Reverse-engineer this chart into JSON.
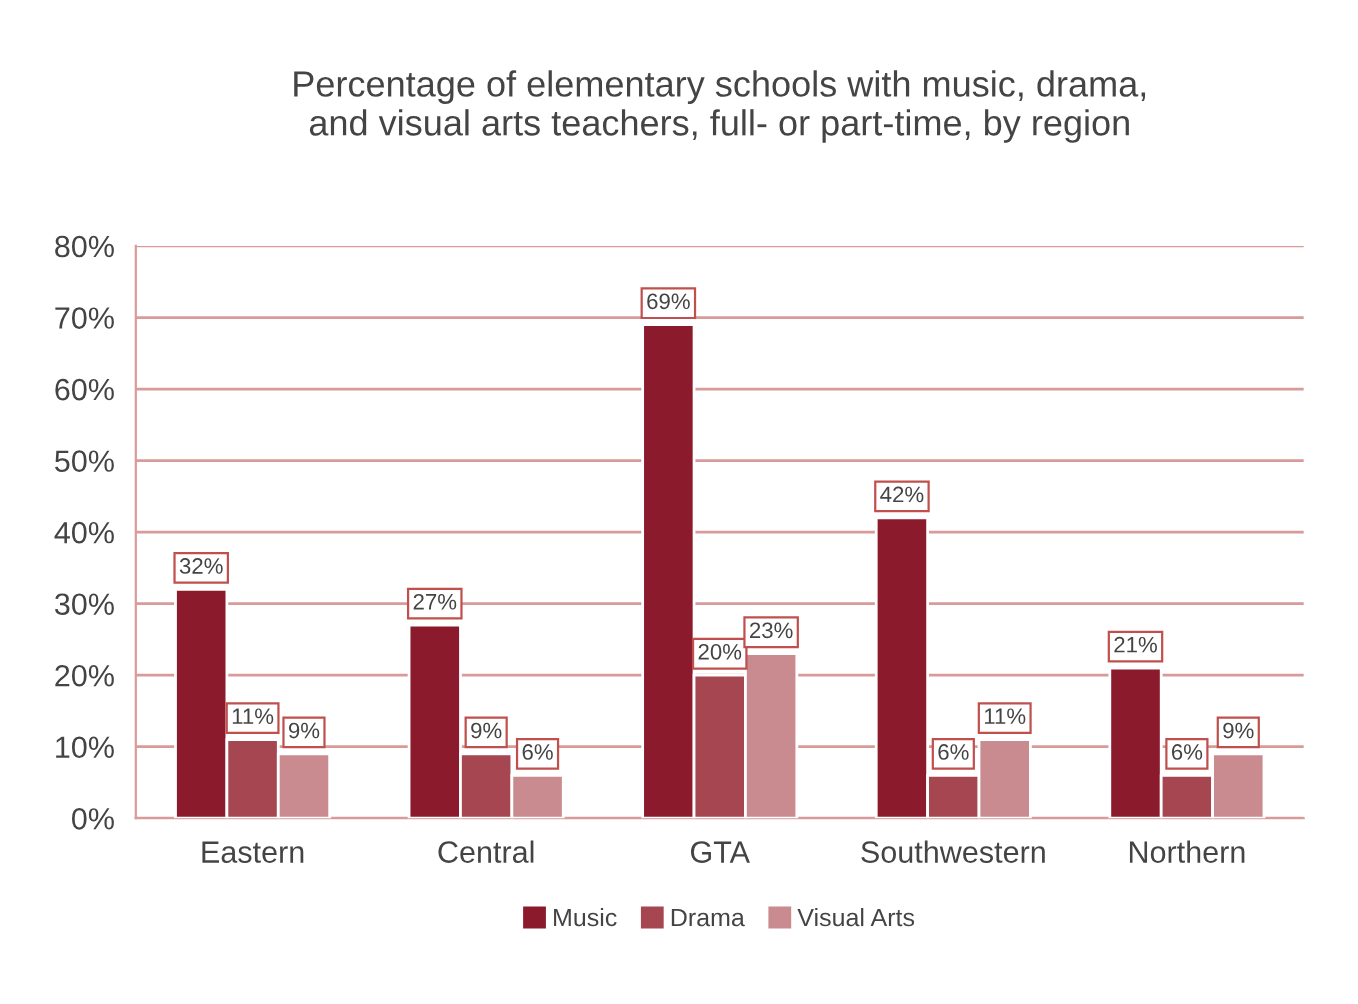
{
  "chart_data": {
    "type": "bar",
    "title": "Percentage of elementary schools with music, drama,\nand visual arts teachers, full- or part-time, by region",
    "categories": [
      "Eastern",
      "Central",
      "GTA",
      "Southwestern",
      "Northern"
    ],
    "series": [
      {
        "name": "Music",
        "color": "#8b1a2c",
        "values": [
          32,
          27,
          69,
          42,
          21
        ],
        "value_labels": [
          "32%",
          "27%",
          "69%",
          "42%",
          "21%"
        ]
      },
      {
        "name": "Drama",
        "color": "#a54650",
        "values": [
          11,
          9,
          20,
          6,
          6
        ],
        "value_labels": [
          "11%",
          "9%",
          "20%",
          "6%",
          "6%"
        ]
      },
      {
        "name": "Visual Arts",
        "color": "#c98b8f",
        "values": [
          9,
          6,
          23,
          11,
          9
        ],
        "value_labels": [
          "9%",
          "6%",
          "23%",
          "11%",
          "9%"
        ]
      }
    ],
    "ylim": [
      0,
      80
    ],
    "yticks": [
      {
        "value": 0,
        "label": "0%"
      },
      {
        "value": 10,
        "label": "10%"
      },
      {
        "value": 20,
        "label": "20%"
      },
      {
        "value": 30,
        "label": "30%"
      },
      {
        "value": 40,
        "label": "40%"
      },
      {
        "value": 50,
        "label": "50%"
      },
      {
        "value": 60,
        "label": "60%"
      },
      {
        "value": 70,
        "label": "70%"
      },
      {
        "value": 80,
        "label": "80%"
      }
    ],
    "grid": "y",
    "legend": "bottom"
  }
}
